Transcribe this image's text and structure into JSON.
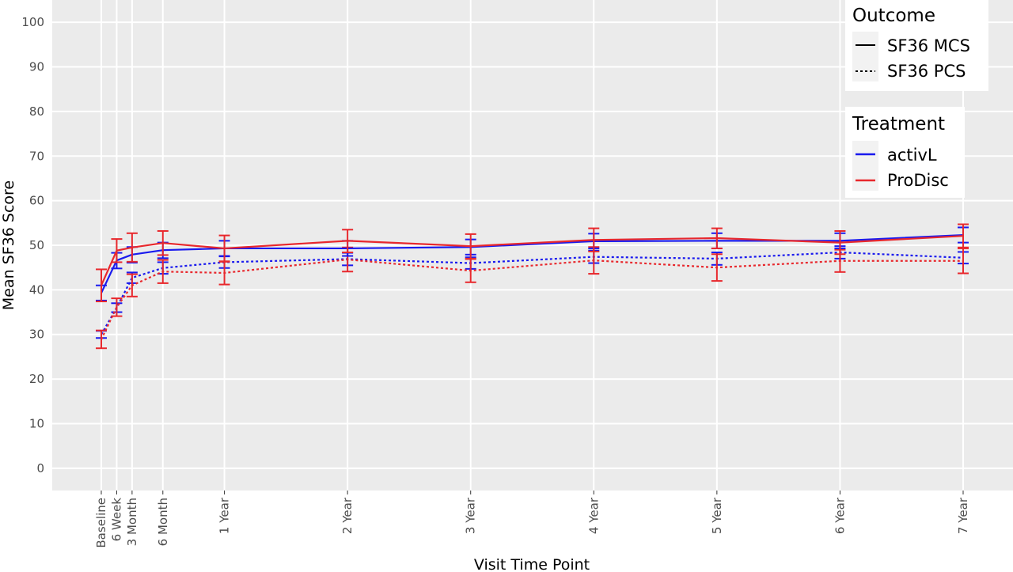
{
  "chart_data": {
    "type": "line",
    "xlabel": "Visit Time Point",
    "ylabel": "Mean SF36 Score",
    "ylim": [
      -5,
      105
    ],
    "yticks": [
      0,
      10,
      20,
      30,
      40,
      50,
      60,
      70,
      80,
      90,
      100
    ],
    "x_unit": "months",
    "categories": [
      {
        "label": "Baseline",
        "months": 0
      },
      {
        "label": "6 Week",
        "months": 1.5
      },
      {
        "label": "3 Month",
        "months": 3
      },
      {
        "label": "6 Month",
        "months": 6
      },
      {
        "label": "1 Year",
        "months": 12
      },
      {
        "label": "2 Year",
        "months": 24
      },
      {
        "label": "3 Year",
        "months": 36
      },
      {
        "label": "4 Year",
        "months": 48
      },
      {
        "label": "5 Year",
        "months": 60
      },
      {
        "label": "6 Year",
        "months": 72
      },
      {
        "label": "7 Year",
        "months": 84
      }
    ],
    "grid": true,
    "legends": [
      {
        "title": "Outcome",
        "placement": "top-right",
        "entries": [
          {
            "label": "SF36 MCS",
            "linetype": "solid"
          },
          {
            "label": "SF36 PCS",
            "linetype": "dotted"
          }
        ]
      },
      {
        "title": "Treatment",
        "placement": "right",
        "entries": [
          {
            "label": "activL",
            "color": "#1a1aee"
          },
          {
            "label": "ProDisc",
            "color": "#e8282d"
          }
        ]
      }
    ],
    "series": [
      {
        "treatment": "activL",
        "outcome": "SF36 MCS",
        "color": "#1a1aee",
        "linetype": "solid",
        "values": [
          39.3,
          46.6,
          47.9,
          48.9,
          49.3,
          49.3,
          49.6,
          50.9,
          51.0,
          51.0,
          52.3
        ],
        "lower": [
          37.6,
          44.8,
          46.1,
          47.1,
          47.6,
          47.6,
          47.9,
          49.3,
          49.3,
          49.3,
          50.6
        ],
        "upper": [
          41.0,
          48.3,
          49.6,
          50.6,
          51.0,
          51.0,
          51.3,
          52.6,
          52.7,
          52.7,
          54.0
        ]
      },
      {
        "treatment": "ProDisc",
        "outcome": "SF36 MCS",
        "color": "#e8282d",
        "linetype": "solid",
        "values": [
          41.0,
          48.8,
          49.5,
          50.5,
          49.3,
          51.0,
          49.8,
          51.2,
          51.6,
          50.6,
          52.1
        ],
        "lower": [
          37.4,
          46.2,
          46.3,
          47.8,
          46.3,
          48.4,
          47.0,
          48.6,
          49.3,
          48.0,
          49.5
        ],
        "upper": [
          44.6,
          51.4,
          52.7,
          53.2,
          52.2,
          53.5,
          52.5,
          53.8,
          53.8,
          53.2,
          54.7
        ]
      },
      {
        "treatment": "activL",
        "outcome": "SF36 PCS",
        "color": "#1a1aee",
        "linetype": "dotted",
        "values": [
          30.0,
          36.0,
          42.7,
          44.9,
          46.2,
          46.9,
          46.0,
          47.4,
          47.0,
          48.4,
          47.2
        ],
        "lower": [
          29.2,
          35.0,
          41.5,
          43.6,
          44.9,
          45.5,
          44.7,
          46.0,
          45.6,
          47.0,
          45.9
        ],
        "upper": [
          30.8,
          37.0,
          43.9,
          46.2,
          47.5,
          48.3,
          47.3,
          48.8,
          48.4,
          49.8,
          48.5
        ]
      },
      {
        "treatment": "ProDisc",
        "outcome": "SF36 PCS",
        "color": "#e8282d",
        "linetype": "dotted",
        "values": [
          28.9,
          36.1,
          41.0,
          44.1,
          43.8,
          46.8,
          44.3,
          46.6,
          45.0,
          46.5,
          46.5
        ],
        "lower": [
          26.9,
          34.1,
          38.5,
          41.5,
          41.2,
          44.1,
          41.7,
          43.6,
          42.0,
          44.0,
          43.7
        ],
        "upper": [
          30.9,
          38.1,
          43.5,
          46.7,
          46.4,
          49.5,
          46.9,
          49.6,
          48.0,
          49.0,
          49.3
        ]
      }
    ]
  }
}
